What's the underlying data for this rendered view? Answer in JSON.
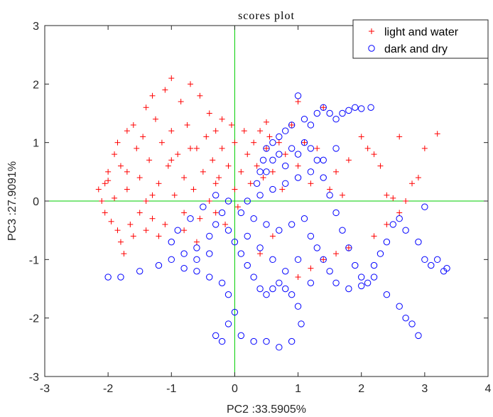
{
  "chart_data": {
    "type": "scatter",
    "title": "scores plot",
    "xlabel": "PC2 :33.5905%",
    "ylabel": "PC3 :27.9091%",
    "xlim": [
      -3,
      4
    ],
    "ylim": [
      -3,
      3
    ],
    "xticks": [
      -3,
      -2,
      -1,
      0,
      1,
      2,
      3,
      4
    ],
    "yticks": [
      -3,
      -2,
      -1,
      0,
      1,
      2,
      3
    ],
    "xtick_labels": [
      "-3",
      "-2",
      "-1",
      "0",
      "1",
      "2",
      "3",
      "4"
    ],
    "ytick_labels": [
      "-3",
      "-2",
      "-1",
      "0",
      "1",
      "2",
      "3"
    ],
    "grid": false,
    "reference_lines": {
      "x": 0,
      "y": 0,
      "color": "#00cc00"
    },
    "legend_position": "top-right",
    "series": [
      {
        "name": "light and water",
        "marker": "plus",
        "color": "#ff0000",
        "points": [
          [
            -2.15,
            0.2
          ],
          [
            -2.1,
            0.0
          ],
          [
            -2.05,
            -0.2
          ],
          [
            -2.0,
            0.35
          ],
          [
            -2.0,
            0.5
          ],
          [
            -1.95,
            -0.35
          ],
          [
            -1.9,
            0.8
          ],
          [
            -1.85,
            1.0
          ],
          [
            -1.85,
            -0.5
          ],
          [
            -1.8,
            0.6
          ],
          [
            -1.8,
            -0.7
          ],
          [
            -1.75,
            -0.9
          ],
          [
            -1.7,
            1.2
          ],
          [
            -1.7,
            0.2
          ],
          [
            -1.65,
            -0.4
          ],
          [
            -1.6,
            1.3
          ],
          [
            -1.55,
            0.9
          ],
          [
            -1.5,
            0.4
          ],
          [
            -1.5,
            -0.2
          ],
          [
            -1.45,
            1.1
          ],
          [
            -1.4,
            1.6
          ],
          [
            -1.4,
            0.0
          ],
          [
            -1.35,
            0.7
          ],
          [
            -1.3,
            1.8
          ],
          [
            -1.3,
            -0.3
          ],
          [
            -1.25,
            1.4
          ],
          [
            -1.2,
            0.3
          ],
          [
            -1.15,
            1.0
          ],
          [
            -1.1,
            1.9
          ],
          [
            -1.1,
            -0.4
          ],
          [
            -1.05,
            0.6
          ],
          [
            -1.0,
            2.1
          ],
          [
            -1.0,
            1.2
          ],
          [
            -0.95,
            0.1
          ],
          [
            -0.9,
            0.8
          ],
          [
            -0.85,
            1.7
          ],
          [
            -0.8,
            -0.5
          ],
          [
            -0.8,
            0.4
          ],
          [
            -0.75,
            1.3
          ],
          [
            -0.7,
            2.0
          ],
          [
            -0.65,
            0.2
          ],
          [
            -0.6,
            0.9
          ],
          [
            -0.55,
            1.8
          ],
          [
            -0.55,
            -0.3
          ],
          [
            -0.5,
            0.5
          ],
          [
            -0.45,
            1.1
          ],
          [
            -0.4,
            0.0
          ],
          [
            -0.4,
            1.5
          ],
          [
            -0.35,
            0.7
          ],
          [
            -0.3,
            -0.2
          ],
          [
            -0.3,
            1.2
          ],
          [
            -0.25,
            0.4
          ],
          [
            -0.2,
            0.9
          ],
          [
            -0.15,
            -0.4
          ],
          [
            -0.1,
            0.6
          ],
          [
            -0.05,
            1.3
          ],
          [
            0.0,
            0.2
          ],
          [
            0.0,
            1.0
          ],
          [
            0.05,
            -0.1
          ],
          [
            0.1,
            0.5
          ],
          [
            0.15,
            1.2
          ],
          [
            0.2,
            0.8
          ],
          [
            0.25,
            0.3
          ],
          [
            0.3,
            1.0
          ],
          [
            0.35,
            0.6
          ],
          [
            0.4,
            1.2
          ],
          [
            0.45,
            0.4
          ],
          [
            0.5,
            0.9
          ],
          [
            0.55,
            1.1
          ],
          [
            0.6,
            0.5
          ],
          [
            0.7,
            1.0
          ],
          [
            0.75,
            0.2
          ],
          [
            0.8,
            0.8
          ],
          [
            0.9,
            1.3
          ],
          [
            1.0,
            0.6
          ],
          [
            1.1,
            1.0
          ],
          [
            1.2,
            0.3
          ],
          [
            1.3,
            0.9
          ],
          [
            1.4,
            1.6
          ],
          [
            1.5,
            0.2
          ],
          [
            1.6,
            0.5
          ],
          [
            1.7,
            0.1
          ],
          [
            1.8,
            0.7
          ],
          [
            2.0,
            1.1
          ],
          [
            2.1,
            0.9
          ],
          [
            2.2,
            0.8
          ],
          [
            2.3,
            0.6
          ],
          [
            2.4,
            0.1
          ],
          [
            2.5,
            0.05
          ],
          [
            2.6,
            1.1
          ],
          [
            2.7,
            0.0
          ],
          [
            2.8,
            0.3
          ],
          [
            2.9,
            0.4
          ],
          [
            3.0,
            0.9
          ],
          [
            3.2,
            1.15
          ],
          [
            2.6,
            -0.2
          ],
          [
            2.4,
            -0.4
          ],
          [
            2.2,
            -0.6
          ],
          [
            1.8,
            -0.8
          ],
          [
            1.6,
            -0.9
          ],
          [
            1.4,
            -1.0
          ],
          [
            1.2,
            -1.15
          ],
          [
            1.0,
            -1.3
          ],
          [
            0.6,
            -0.6
          ],
          [
            0.4,
            -0.9
          ],
          [
            -1.2,
            -0.6
          ],
          [
            -1.4,
            -0.5
          ],
          [
            -1.6,
            -0.6
          ],
          [
            -0.6,
            -0.7
          ],
          [
            -0.8,
            -0.2
          ],
          [
            1.0,
            1.7
          ],
          [
            0.5,
            1.35
          ],
          [
            -0.2,
            1.4
          ],
          [
            -1.9,
            0.05
          ],
          [
            -2.05,
            0.3
          ],
          [
            -1.7,
            0.5
          ],
          [
            -1.3,
            0.1
          ],
          [
            -1.0,
            0.7
          ],
          [
            -0.7,
            0.9
          ],
          [
            -0.3,
            0.3
          ]
        ]
      },
      {
        "name": "dark and dry",
        "marker": "circle",
        "color": "#0000ff",
        "points": [
          [
            0.35,
            0.3
          ],
          [
            0.4,
            0.5
          ],
          [
            0.45,
            0.7
          ],
          [
            0.5,
            0.9
          ],
          [
            0.6,
            1.0
          ],
          [
            0.7,
            1.1
          ],
          [
            0.8,
            1.2
          ],
          [
            0.9,
            1.3
          ],
          [
            1.0,
            1.8
          ],
          [
            1.1,
            1.4
          ],
          [
            1.2,
            1.3
          ],
          [
            1.3,
            1.5
          ],
          [
            1.4,
            1.6
          ],
          [
            1.5,
            1.5
          ],
          [
            1.6,
            1.4
          ],
          [
            1.7,
            1.5
          ],
          [
            1.8,
            1.55
          ],
          [
            1.9,
            1.6
          ],
          [
            2.0,
            1.58
          ],
          [
            2.15,
            1.6
          ],
          [
            0.5,
            0.5
          ],
          [
            0.6,
            0.7
          ],
          [
            0.7,
            0.8
          ],
          [
            0.8,
            0.6
          ],
          [
            0.9,
            0.9
          ],
          [
            1.0,
            0.8
          ],
          [
            1.1,
            1.0
          ],
          [
            1.2,
            0.9
          ],
          [
            1.3,
            0.7
          ],
          [
            1.4,
            0.4
          ],
          [
            1.5,
            0.1
          ],
          [
            1.6,
            -0.2
          ],
          [
            1.7,
            -0.5
          ],
          [
            1.8,
            -0.8
          ],
          [
            1.9,
            -1.1
          ],
          [
            2.0,
            -1.3
          ],
          [
            2.1,
            -1.4
          ],
          [
            2.2,
            -1.1
          ],
          [
            2.3,
            -0.9
          ],
          [
            2.4,
            -0.7
          ],
          [
            2.5,
            -0.4
          ],
          [
            2.6,
            -0.3
          ],
          [
            2.2,
            -1.3
          ],
          [
            2.4,
            -1.6
          ],
          [
            2.6,
            -1.8
          ],
          [
            2.7,
            -2.0
          ],
          [
            2.8,
            -2.1
          ],
          [
            2.9,
            -2.3
          ],
          [
            3.0,
            -1.0
          ],
          [
            3.1,
            -1.1
          ],
          [
            3.2,
            -1.0
          ],
          [
            3.3,
            -1.2
          ],
          [
            3.35,
            -1.15
          ],
          [
            2.7,
            -0.5
          ],
          [
            2.9,
            -0.7
          ],
          [
            3.0,
            -0.1
          ],
          [
            -2.0,
            -1.3
          ],
          [
            -1.8,
            -1.3
          ],
          [
            -1.5,
            -1.2
          ],
          [
            -1.2,
            -1.1
          ],
          [
            -1.0,
            -1.0
          ],
          [
            -0.8,
            -0.9
          ],
          [
            -0.6,
            -0.8
          ],
          [
            -0.4,
            -0.6
          ],
          [
            -0.3,
            -0.4
          ],
          [
            -0.2,
            -0.2
          ],
          [
            -0.1,
            -0.5
          ],
          [
            0.0,
            -0.7
          ],
          [
            0.1,
            -0.9
          ],
          [
            0.2,
            -1.1
          ],
          [
            0.3,
            -1.3
          ],
          [
            0.4,
            -1.5
          ],
          [
            0.5,
            -1.6
          ],
          [
            0.6,
            -1.5
          ],
          [
            0.7,
            -1.4
          ],
          [
            0.8,
            -1.5
          ],
          [
            0.9,
            -1.6
          ],
          [
            1.0,
            -1.8
          ],
          [
            1.05,
            -2.1
          ],
          [
            0.9,
            -2.4
          ],
          [
            0.7,
            -2.5
          ],
          [
            0.5,
            -2.4
          ],
          [
            0.3,
            -2.4
          ],
          [
            0.1,
            -2.3
          ],
          [
            -0.1,
            -2.1
          ],
          [
            -0.2,
            -2.4
          ],
          [
            -0.3,
            -2.3
          ],
          [
            0.0,
            -1.9
          ],
          [
            -0.1,
            -1.6
          ],
          [
            -0.2,
            -1.4
          ],
          [
            -0.4,
            -1.3
          ],
          [
            -0.6,
            -1.2
          ],
          [
            -0.8,
            -1.15
          ],
          [
            -1.0,
            -0.7
          ],
          [
            -0.9,
            -0.5
          ],
          [
            -0.7,
            -0.3
          ],
          [
            -0.5,
            -0.1
          ],
          [
            -0.3,
            0.1
          ],
          [
            -0.1,
            0.0
          ],
          [
            0.1,
            -0.2
          ],
          [
            0.3,
            -0.3
          ],
          [
            0.5,
            -0.4
          ],
          [
            0.7,
            -0.5
          ],
          [
            0.9,
            -0.4
          ],
          [
            1.1,
            -0.3
          ],
          [
            1.2,
            -0.6
          ],
          [
            1.3,
            -0.8
          ],
          [
            1.4,
            -1.0
          ],
          [
            1.5,
            -1.2
          ],
          [
            1.6,
            -1.4
          ],
          [
            1.8,
            -1.5
          ],
          [
            2.0,
            -1.45
          ],
          [
            0.2,
            0.0
          ],
          [
            0.4,
            0.1
          ],
          [
            0.6,
            0.2
          ],
          [
            0.8,
            0.3
          ],
          [
            1.0,
            0.4
          ],
          [
            1.2,
            0.5
          ],
          [
            1.4,
            0.7
          ],
          [
            1.6,
            0.9
          ],
          [
            -0.4,
            -0.9
          ],
          [
            -0.6,
            -1.0
          ],
          [
            0.2,
            -0.6
          ],
          [
            0.4,
            -0.8
          ],
          [
            0.6,
            -1.0
          ],
          [
            0.8,
            -1.2
          ],
          [
            1.0,
            -1.0
          ],
          [
            1.2,
            -1.4
          ]
        ]
      }
    ]
  }
}
